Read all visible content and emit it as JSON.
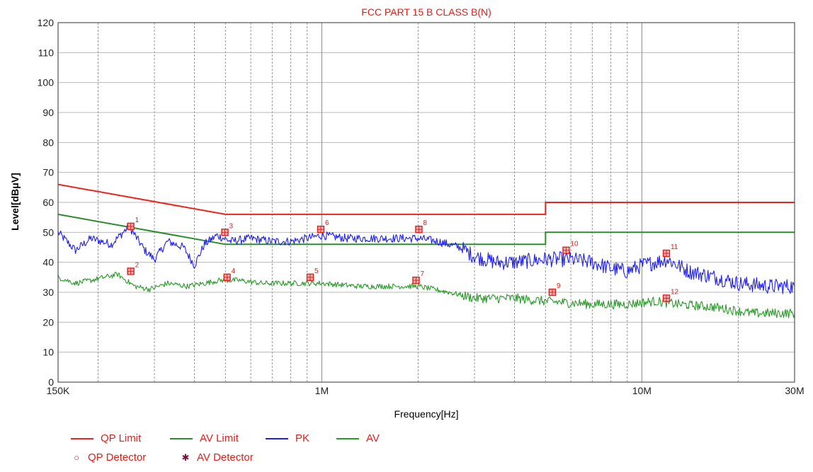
{
  "chart_data": {
    "type": "line",
    "title": "FCC PART 15 B CLASS B(N)",
    "xlabel": "Frequency[Hz]",
    "ylabel": "Level[dBμV]",
    "x_scale": "log",
    "xlim": [
      150000,
      30000000
    ],
    "ylim": [
      0,
      120
    ],
    "grid": true,
    "y_ticks": [
      0,
      10,
      20,
      30,
      40,
      50,
      60,
      70,
      80,
      90,
      100,
      110,
      120
    ],
    "x_tick_labels": [
      {
        "value": 150000,
        "label": "150K"
      },
      {
        "value": 1000000,
        "label": "1M"
      },
      {
        "value": 10000000,
        "label": "10M"
      },
      {
        "value": 30000000,
        "label": "30M"
      }
    ],
    "legend_placement": "bottom-left",
    "series": [
      {
        "name": "QP Limit",
        "color": "#e8251f",
        "style": "limit",
        "points": [
          [
            150000,
            66
          ],
          [
            500000,
            56
          ],
          [
            5000000,
            56
          ],
          [
            5000000,
            60
          ],
          [
            30000000,
            60
          ]
        ]
      },
      {
        "name": "AV Limit",
        "color": "#2e8b2e",
        "style": "limit",
        "points": [
          [
            150000,
            56
          ],
          [
            500000,
            46
          ],
          [
            5000000,
            46
          ],
          [
            5000000,
            50
          ],
          [
            30000000,
            50
          ]
        ]
      },
      {
        "name": "PK",
        "color": "#2020ee",
        "style": "trace",
        "points": [
          [
            150000,
            50
          ],
          [
            170000,
            44
          ],
          [
            190000,
            48
          ],
          [
            220000,
            46
          ],
          [
            250000,
            52
          ],
          [
            280000,
            44
          ],
          [
            300000,
            41
          ],
          [
            330000,
            47
          ],
          [
            370000,
            45
          ],
          [
            400000,
            39
          ],
          [
            430000,
            46
          ],
          [
            470000,
            49
          ],
          [
            520000,
            47
          ],
          [
            600000,
            48
          ],
          [
            700000,
            47
          ],
          [
            800000,
            47
          ],
          [
            900000,
            48
          ],
          [
            1000000,
            49
          ],
          [
            1200000,
            48
          ],
          [
            1500000,
            48
          ],
          [
            2000000,
            48
          ],
          [
            2300000,
            47
          ],
          [
            2700000,
            45
          ],
          [
            3000000,
            42
          ],
          [
            3500000,
            40
          ],
          [
            4000000,
            40
          ],
          [
            5000000,
            41
          ],
          [
            6000000,
            41
          ],
          [
            7000000,
            40
          ],
          [
            8000000,
            38
          ],
          [
            9000000,
            37
          ],
          [
            10000000,
            39
          ],
          [
            11000000,
            40
          ],
          [
            12000000,
            41
          ],
          [
            14000000,
            37
          ],
          [
            17000000,
            35
          ],
          [
            20000000,
            33
          ],
          [
            25000000,
            32
          ],
          [
            30000000,
            32
          ]
        ]
      },
      {
        "name": "AV",
        "color": "#2a9a2a",
        "style": "trace",
        "points": [
          [
            150000,
            35
          ],
          [
            170000,
            33
          ],
          [
            190000,
            34
          ],
          [
            230000,
            36
          ],
          [
            260000,
            32
          ],
          [
            290000,
            31
          ],
          [
            330000,
            33
          ],
          [
            380000,
            32
          ],
          [
            430000,
            33
          ],
          [
            480000,
            34
          ],
          [
            550000,
            34
          ],
          [
            650000,
            33
          ],
          [
            800000,
            33
          ],
          [
            1000000,
            33
          ],
          [
            1300000,
            32
          ],
          [
            1600000,
            32
          ],
          [
            2000000,
            32
          ],
          [
            2500000,
            30
          ],
          [
            3000000,
            28
          ],
          [
            4000000,
            28
          ],
          [
            5000000,
            27
          ],
          [
            7000000,
            26
          ],
          [
            9000000,
            26
          ],
          [
            11000000,
            27
          ],
          [
            13000000,
            26
          ],
          [
            17000000,
            25
          ],
          [
            22000000,
            23
          ],
          [
            30000000,
            23
          ]
        ]
      }
    ],
    "markers": [
      {
        "label": "1",
        "detector": "QP Detector",
        "x": 253000,
        "y": 52
      },
      {
        "label": "2",
        "detector": "AV Detector",
        "x": 253000,
        "y": 37
      },
      {
        "label": "3",
        "detector": "QP Detector",
        "x": 498000,
        "y": 50
      },
      {
        "label": "4",
        "detector": "AV Detector",
        "x": 506000,
        "y": 35
      },
      {
        "label": "5",
        "detector": "AV Detector",
        "x": 920000,
        "y": 35
      },
      {
        "label": "6",
        "detector": "QP Detector",
        "x": 993000,
        "y": 51
      },
      {
        "label": "7",
        "detector": "AV Detector",
        "x": 1970000,
        "y": 34
      },
      {
        "label": "8",
        "detector": "QP Detector",
        "x": 2010000,
        "y": 51
      },
      {
        "label": "9",
        "detector": "AV Detector",
        "x": 5250000,
        "y": 30
      },
      {
        "label": "10",
        "detector": "QP Detector",
        "x": 5800000,
        "y": 44
      },
      {
        "label": "11",
        "detector": "QP Detector",
        "x": 11930000,
        "y": 43
      },
      {
        "label": "12",
        "detector": "AV Detector",
        "x": 11930000,
        "y": 28
      }
    ]
  },
  "legend": [
    {
      "label": "QP Limit",
      "color": "#e8251f",
      "kind": "line"
    },
    {
      "label": "AV Limit",
      "color": "#2e8b2e",
      "kind": "line"
    },
    {
      "label": "PK",
      "color": "#2020ee",
      "kind": "line"
    },
    {
      "label": "AV",
      "color": "#2a9a2a",
      "kind": "line"
    },
    {
      "label": "QP Detector",
      "color": "#e8251f",
      "kind": "circle-icon"
    },
    {
      "label": "AV Detector",
      "color": "#7a1040",
      "kind": "star-icon"
    }
  ]
}
